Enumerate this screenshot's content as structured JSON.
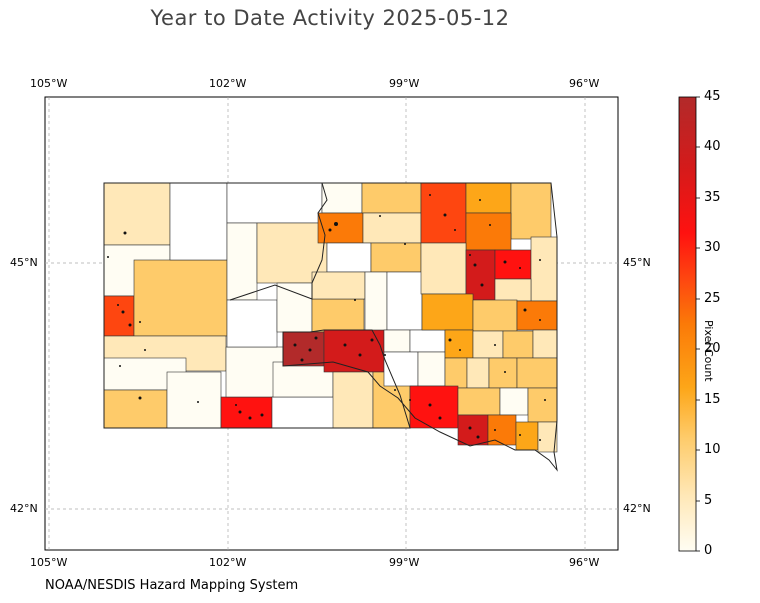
{
  "title": "Year to Date Activity 2025-05-12",
  "footer": "NOAA/NESDIS Hazard Mapping System",
  "lon_labels": [
    "105°W",
    "102°W",
    "99°W",
    "96°W"
  ],
  "lat_labels": [
    "45°N",
    "42°N"
  ],
  "colorbar": {
    "label": "Pixel Count",
    "ticks": [
      "0",
      "5",
      "10",
      "15",
      "20",
      "25",
      "30",
      "35",
      "40",
      "45"
    ],
    "range": [
      0,
      45
    ],
    "colors": [
      "#fffdf3",
      "#ffe8b8",
      "#fecb6a",
      "#fda618",
      "#fb7a08",
      "#fe4610",
      "#ff1210",
      "#d31b1b",
      "#b22a2a"
    ]
  },
  "colors": {
    "border": "#333333",
    "grid": "#aaaaaa",
    "dot": "#111111"
  }
}
